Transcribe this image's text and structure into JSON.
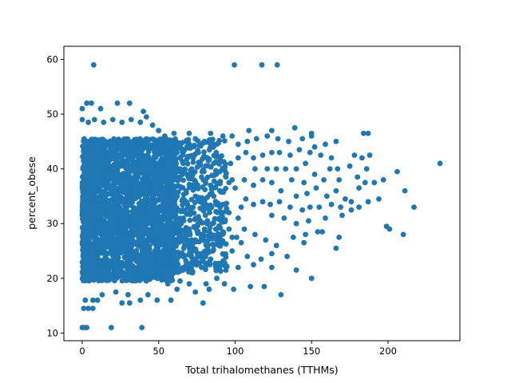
{
  "chart_data": {
    "type": "scatter",
    "title": "",
    "xlabel": "Total trihalomethanes (TTHMs)",
    "ylabel": "percent_obese",
    "xlim": [
      -12,
      247
    ],
    "ylim": [
      8.6,
      62.4
    ],
    "x_ticks": [
      0,
      50,
      100,
      150,
      200
    ],
    "y_ticks": [
      10,
      20,
      30,
      40,
      50,
      60
    ],
    "grid": false,
    "legend": "none",
    "marker_color": "#1f77b4",
    "series": [
      {
        "points": [
          [
            7.5,
            59
          ],
          [
            99.5,
            59
          ],
          [
            117.5,
            59
          ],
          [
            127.5,
            59
          ],
          [
            0,
            51
          ],
          [
            3,
            52
          ],
          [
            6,
            52
          ],
          [
            12,
            51
          ],
          [
            23,
            52
          ],
          [
            31,
            52
          ],
          [
            40,
            50.5
          ],
          [
            42,
            49.5
          ],
          [
            0,
            11
          ],
          [
            1.5,
            11
          ],
          [
            3,
            11
          ],
          [
            19,
            11
          ],
          [
            39,
            11
          ],
          [
            1,
            14.5
          ],
          [
            4,
            14.5
          ],
          [
            7,
            14.5
          ],
          [
            2,
            16
          ],
          [
            7,
            16
          ],
          [
            10,
            16
          ],
          [
            26,
            15.5
          ],
          [
            31,
            15.5
          ],
          [
            38,
            16
          ],
          [
            49,
            16
          ],
          [
            58,
            16
          ],
          [
            79,
            15.5
          ],
          [
            13,
            17
          ],
          [
            22,
            17.5
          ],
          [
            30,
            17
          ],
          [
            43,
            17
          ],
          [
            62,
            18
          ],
          [
            74,
            17.5
          ],
          [
            83,
            18
          ],
          [
            99,
            18
          ],
          [
            110,
            18.5
          ],
          [
            119,
            18.5
          ],
          [
            130,
            17
          ],
          [
            56,
            19
          ],
          [
            64,
            19.5
          ],
          [
            70,
            19
          ],
          [
            81,
            19
          ],
          [
            93,
            19
          ],
          [
            88,
            20
          ],
          [
            150,
            20
          ],
          [
            140,
            21.5
          ],
          [
            124,
            22
          ],
          [
            124,
            24.5
          ],
          [
            117,
            23.5
          ],
          [
            112,
            22.5
          ],
          [
            102,
            22
          ],
          [
            94,
            21.5
          ],
          [
            108,
            24
          ],
          [
            98,
            25
          ],
          [
            92,
            23
          ],
          [
            86,
            26
          ],
          [
            134,
            24
          ],
          [
            127,
            26
          ],
          [
            120,
            27
          ],
          [
            113,
            28
          ],
          [
            106,
            29
          ],
          [
            101,
            27.5
          ],
          [
            96,
            29
          ],
          [
            145,
            26.5
          ],
          [
            138,
            27.5
          ],
          [
            154,
            28.5
          ],
          [
            146,
            28
          ],
          [
            166,
            25.5
          ],
          [
            168,
            27.5
          ],
          [
            157,
            28.5
          ],
          [
            140,
            30
          ],
          [
            132,
            31
          ],
          [
            124,
            31.5
          ],
          [
            148,
            30.5
          ],
          [
            159,
            31
          ],
          [
            170,
            31.5
          ],
          [
            176,
            32.5
          ],
          [
            187,
            34
          ],
          [
            194,
            34.5
          ],
          [
            199,
            29.5
          ],
          [
            201,
            29
          ],
          [
            210,
            28
          ],
          [
            217,
            33
          ],
          [
            181,
            33
          ],
          [
            176,
            34
          ],
          [
            169,
            33
          ],
          [
            163,
            33.5
          ],
          [
            155,
            33
          ],
          [
            149,
            33
          ],
          [
            144,
            32.5
          ],
          [
            136,
            33
          ],
          [
            129,
            34
          ],
          [
            123,
            33.5
          ],
          [
            118,
            34
          ],
          [
            112,
            33.5
          ],
          [
            107,
            34.5
          ],
          [
            104,
            33
          ],
          [
            140,
            35
          ],
          [
            147,
            35.5
          ],
          [
            153,
            36.5
          ],
          [
            160,
            35
          ],
          [
            166,
            36
          ],
          [
            172,
            34.5
          ],
          [
            181,
            36.5
          ],
          [
            185,
            37.5
          ],
          [
            191,
            37.5
          ],
          [
            197,
            38
          ],
          [
            206,
            39.5
          ],
          [
            211,
            36
          ],
          [
            234,
            41
          ],
          [
            130,
            36
          ],
          [
            124,
            37.5
          ],
          [
            118,
            38
          ],
          [
            112,
            37
          ],
          [
            106,
            38
          ],
          [
            100,
            36.5
          ],
          [
            96,
            37.5
          ],
          [
            137,
            38
          ],
          [
            145,
            37.5
          ],
          [
            152,
            39
          ],
          [
            158,
            38
          ],
          [
            162,
            40
          ],
          [
            167,
            40
          ],
          [
            175,
            40.5
          ],
          [
            168,
            38
          ],
          [
            180,
            38.5
          ],
          [
            186,
            40
          ],
          [
            183,
            42
          ],
          [
            188,
            42.5
          ],
          [
            178,
            42.5
          ],
          [
            163,
            42
          ],
          [
            156,
            42.5
          ],
          [
            149,
            43
          ],
          [
            142,
            43.5
          ],
          [
            136,
            42.5
          ],
          [
            129,
            43
          ],
          [
            124,
            43
          ],
          [
            118,
            42.5
          ],
          [
            112,
            42
          ],
          [
            107,
            43
          ],
          [
            102,
            42
          ],
          [
            97,
            41
          ],
          [
            93,
            40
          ],
          [
            113,
            40
          ],
          [
            121,
            40
          ],
          [
            127,
            40
          ],
          [
            133,
            40
          ],
          [
            140,
            40
          ],
          [
            146,
            41
          ],
          [
            152,
            44
          ],
          [
            159,
            44.5
          ],
          [
            166,
            45
          ],
          [
            144,
            45.5
          ],
          [
            135,
            45
          ],
          [
            128,
            45.5
          ],
          [
            121,
            46
          ],
          [
            114,
            45.5
          ],
          [
            108,
            45
          ],
          [
            102,
            44.5
          ],
          [
            98,
            46
          ],
          [
            92,
            46
          ],
          [
            88,
            44.5
          ],
          [
            84,
            46.5
          ],
          [
            80,
            45
          ],
          [
            74,
            45.5
          ],
          [
            70,
            46.5
          ],
          [
            139,
            47.5
          ],
          [
            150,
            46
          ],
          [
            150,
            46.5
          ],
          [
            184,
            46.5
          ],
          [
            187,
            46.5
          ],
          [
            109,
            47
          ],
          [
            124,
            47
          ],
          [
            72,
            44
          ],
          [
            76,
            43
          ],
          [
            82,
            42
          ],
          [
            86,
            41
          ],
          [
            90,
            39.5
          ],
          [
            94,
            38.5
          ],
          [
            98,
            38
          ],
          [
            78,
            38.5
          ],
          [
            84,
            37
          ],
          [
            90,
            36
          ],
          [
            86,
            35
          ],
          [
            80,
            34
          ],
          [
            92,
            33.5
          ],
          [
            96,
            32
          ],
          [
            102,
            31
          ],
          [
            90,
            31
          ],
          [
            85,
            30
          ],
          [
            80,
            29
          ],
          [
            92,
            28.5
          ],
          [
            98,
            27.5
          ],
          [
            104,
            26.5
          ],
          [
            88,
            27
          ],
          [
            82,
            25.5
          ],
          [
            76,
            24.5
          ],
          [
            84,
            23.5
          ],
          [
            90,
            22.5
          ],
          [
            78,
            22
          ],
          [
            72,
            21
          ],
          [
            68,
            22.5
          ],
          [
            74,
            27
          ],
          [
            70,
            29
          ],
          [
            66,
            31
          ],
          [
            70,
            33
          ],
          [
            74,
            35
          ],
          [
            68,
            36
          ],
          [
            72,
            39
          ],
          [
            66,
            41
          ],
          [
            62,
            43
          ],
          [
            58,
            44.5
          ],
          [
            54,
            46
          ],
          [
            50,
            47
          ],
          [
            46,
            48
          ],
          [
            38,
            48.5
          ],
          [
            32,
            49
          ],
          [
            26,
            48.5
          ],
          [
            20,
            49
          ],
          [
            14,
            48.5
          ],
          [
            8,
            49
          ],
          [
            4,
            48.5
          ],
          [
            0,
            49
          ],
          [
            60,
            46.5
          ]
        ],
        "dense_region": {
          "x_range": [
            0,
            60
          ],
          "y_range": [
            19.5,
            45.5
          ],
          "n": 2600
        },
        "transition_region": {
          "x_range": [
            55,
            95
          ],
          "y_range": [
            21,
            45.5
          ],
          "n": 700
        }
      }
    ]
  }
}
